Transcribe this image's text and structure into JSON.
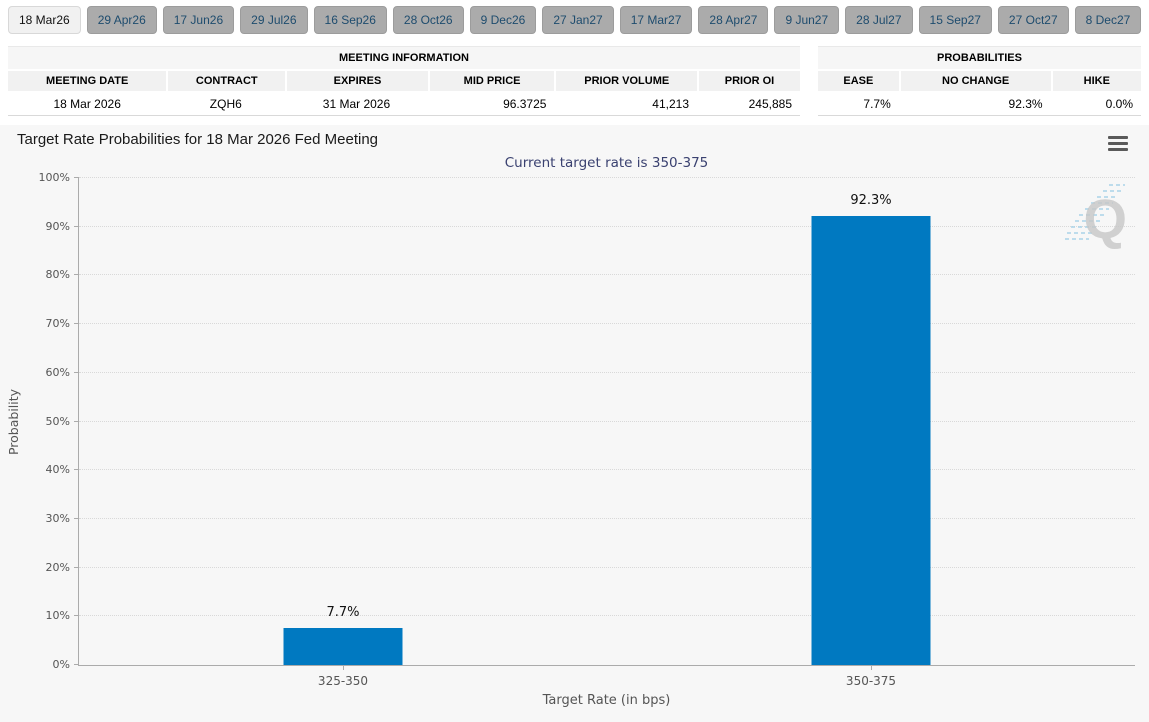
{
  "tabs": {
    "items": [
      {
        "label": "18 Mar26",
        "active": true
      },
      {
        "label": "29 Apr26",
        "active": false
      },
      {
        "label": "17 Jun26",
        "active": false
      },
      {
        "label": "29 Jul26",
        "active": false
      },
      {
        "label": "16 Sep26",
        "active": false
      },
      {
        "label": "28 Oct26",
        "active": false
      },
      {
        "label": "9 Dec26",
        "active": false
      },
      {
        "label": "27 Jan27",
        "active": false
      },
      {
        "label": "17 Mar27",
        "active": false
      },
      {
        "label": "28 Apr27",
        "active": false
      },
      {
        "label": "9 Jun27",
        "active": false
      },
      {
        "label": "28 Jul27",
        "active": false
      },
      {
        "label": "15 Sep27",
        "active": false
      },
      {
        "label": "27 Oct27",
        "active": false
      },
      {
        "label": "8 Dec27",
        "active": false
      }
    ]
  },
  "meeting_info": {
    "title": "MEETING INFORMATION",
    "columns": [
      "MEETING DATE",
      "CONTRACT",
      "EXPIRES",
      "MID PRICE",
      "PRIOR VOLUME",
      "PRIOR OI"
    ],
    "col_widths": [
      "20%",
      "15%",
      "18%",
      "16%",
      "18%",
      "13%"
    ],
    "row": [
      "18 Mar 2026",
      "ZQH6",
      "31 Mar 2026",
      "96.3725",
      "41,213",
      "245,885"
    ],
    "row_aligns": [
      "center",
      "center",
      "center",
      "right",
      "right",
      "right"
    ]
  },
  "probabilities": {
    "title": "PROBABILITIES",
    "columns": [
      "EASE",
      "NO CHANGE",
      "HIKE"
    ],
    "col_widths": [
      "25%",
      "47%",
      "28%"
    ],
    "row": [
      "7.7%",
      "92.3%",
      "0.0%"
    ],
    "row_aligns": [
      "right",
      "right",
      "right"
    ]
  },
  "chart_data": {
    "type": "bar",
    "title": "Target Rate Probabilities for 18 Mar 2026 Fed Meeting",
    "subtitle": "Current target rate is 350-375",
    "categories": [
      "325-350",
      "350-375"
    ],
    "values": [
      7.7,
      92.3
    ],
    "value_labels": [
      "7.7%",
      "92.3%"
    ],
    "xlabel": "Target Rate (in bps)",
    "ylabel": "Probability",
    "ylim": [
      0,
      100
    ],
    "ytick_step": 10,
    "ytick_suffix": "%",
    "grid": "horizontal-dotted",
    "legend": "none",
    "bar_color": "#0079c1"
  },
  "watermark": {
    "letter": "Q"
  },
  "colors": {
    "bar": "#0079c1",
    "subtitle_text": "#3a4170",
    "tab_inactive_bg": "#ababab",
    "tab_text": "#1e4c6e",
    "panel_bg": "#f7f7f7"
  }
}
